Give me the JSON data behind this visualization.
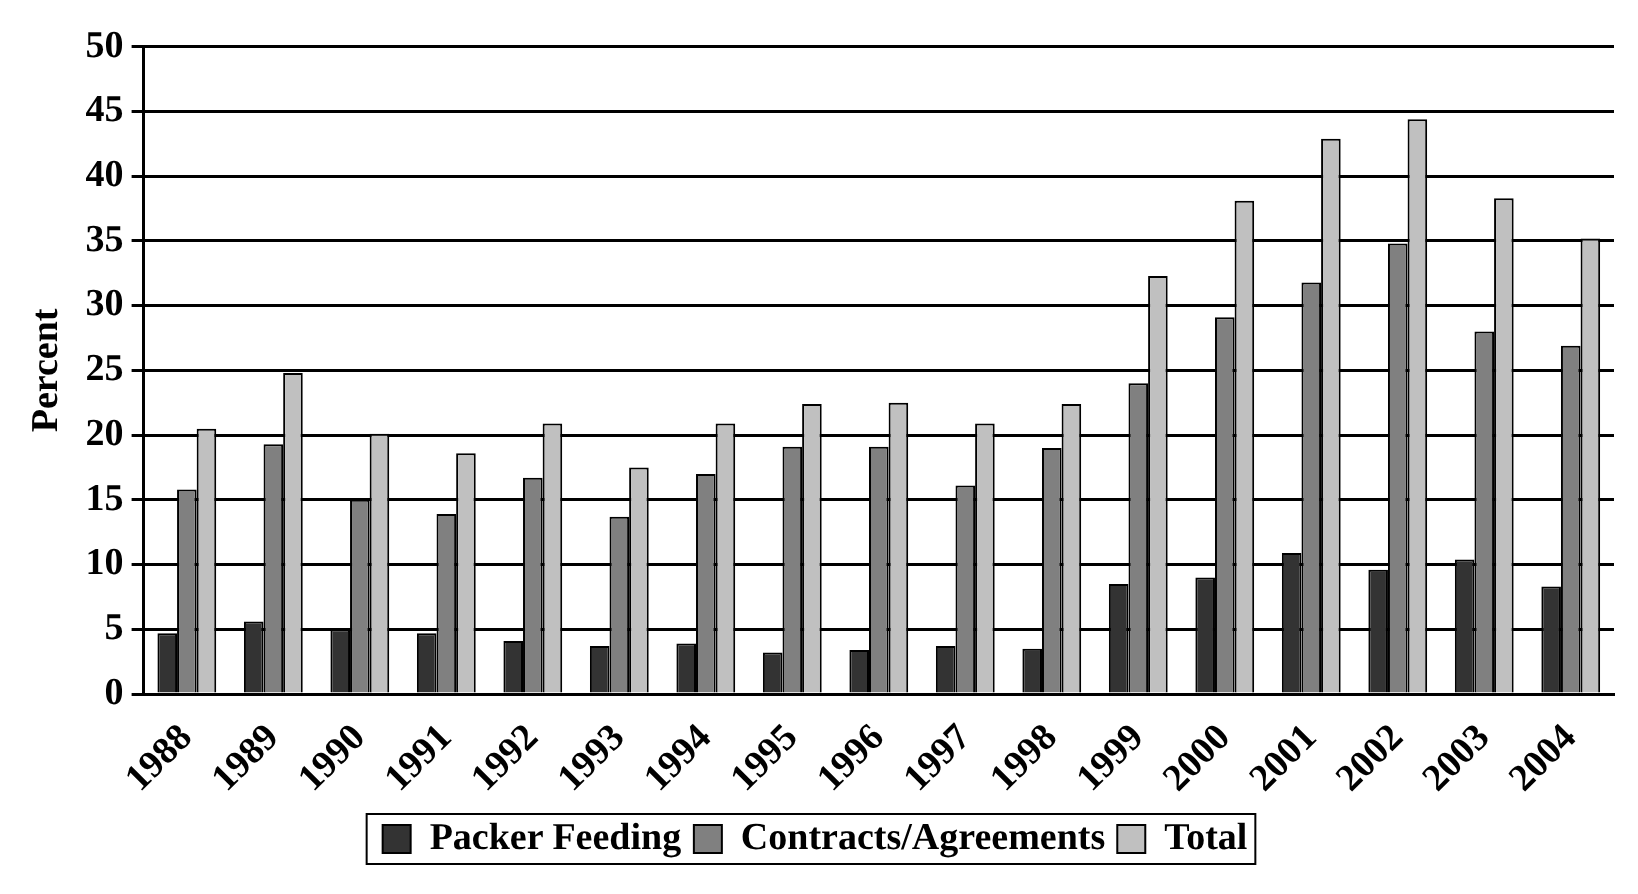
{
  "chart_data": {
    "type": "bar",
    "ylabel": "Percent",
    "categories": [
      "1988",
      "1989",
      "1990",
      "1991",
      "1992",
      "1993",
      "1994",
      "1995",
      "1996",
      "1997",
      "1998",
      "1999",
      "2000",
      "2001",
      "2002",
      "2003",
      "2004"
    ],
    "series": [
      {
        "name": "Packer Feeding",
        "color": "#333333",
        "values": [
          4.7,
          5.6,
          5.0,
          4.7,
          4.1,
          3.7,
          3.9,
          3.2,
          3.4,
          3.7,
          3.5,
          8.5,
          9.0,
          10.9,
          9.6,
          10.4,
          8.3
        ]
      },
      {
        "name": "Contracts/Agreements",
        "color": "#808080",
        "values": [
          15.8,
          19.3,
          15.0,
          13.9,
          16.7,
          13.7,
          17.0,
          19.1,
          19.1,
          16.1,
          19.0,
          24.0,
          29.1,
          31.8,
          34.8,
          28.0,
          26.9
        ]
      },
      {
        "name": "Total",
        "color": "#c0c0c0",
        "values": [
          20.5,
          24.8,
          20.1,
          18.6,
          20.9,
          17.5,
          20.9,
          22.4,
          22.5,
          20.9,
          22.4,
          32.3,
          38.1,
          42.9,
          44.4,
          38.3,
          35.2
        ]
      }
    ],
    "ylim": [
      0,
      50
    ],
    "yticks": [
      0,
      5,
      10,
      15,
      20,
      25,
      30,
      35,
      40,
      45,
      50
    ],
    "grid": "y",
    "legend": "bottom"
  }
}
